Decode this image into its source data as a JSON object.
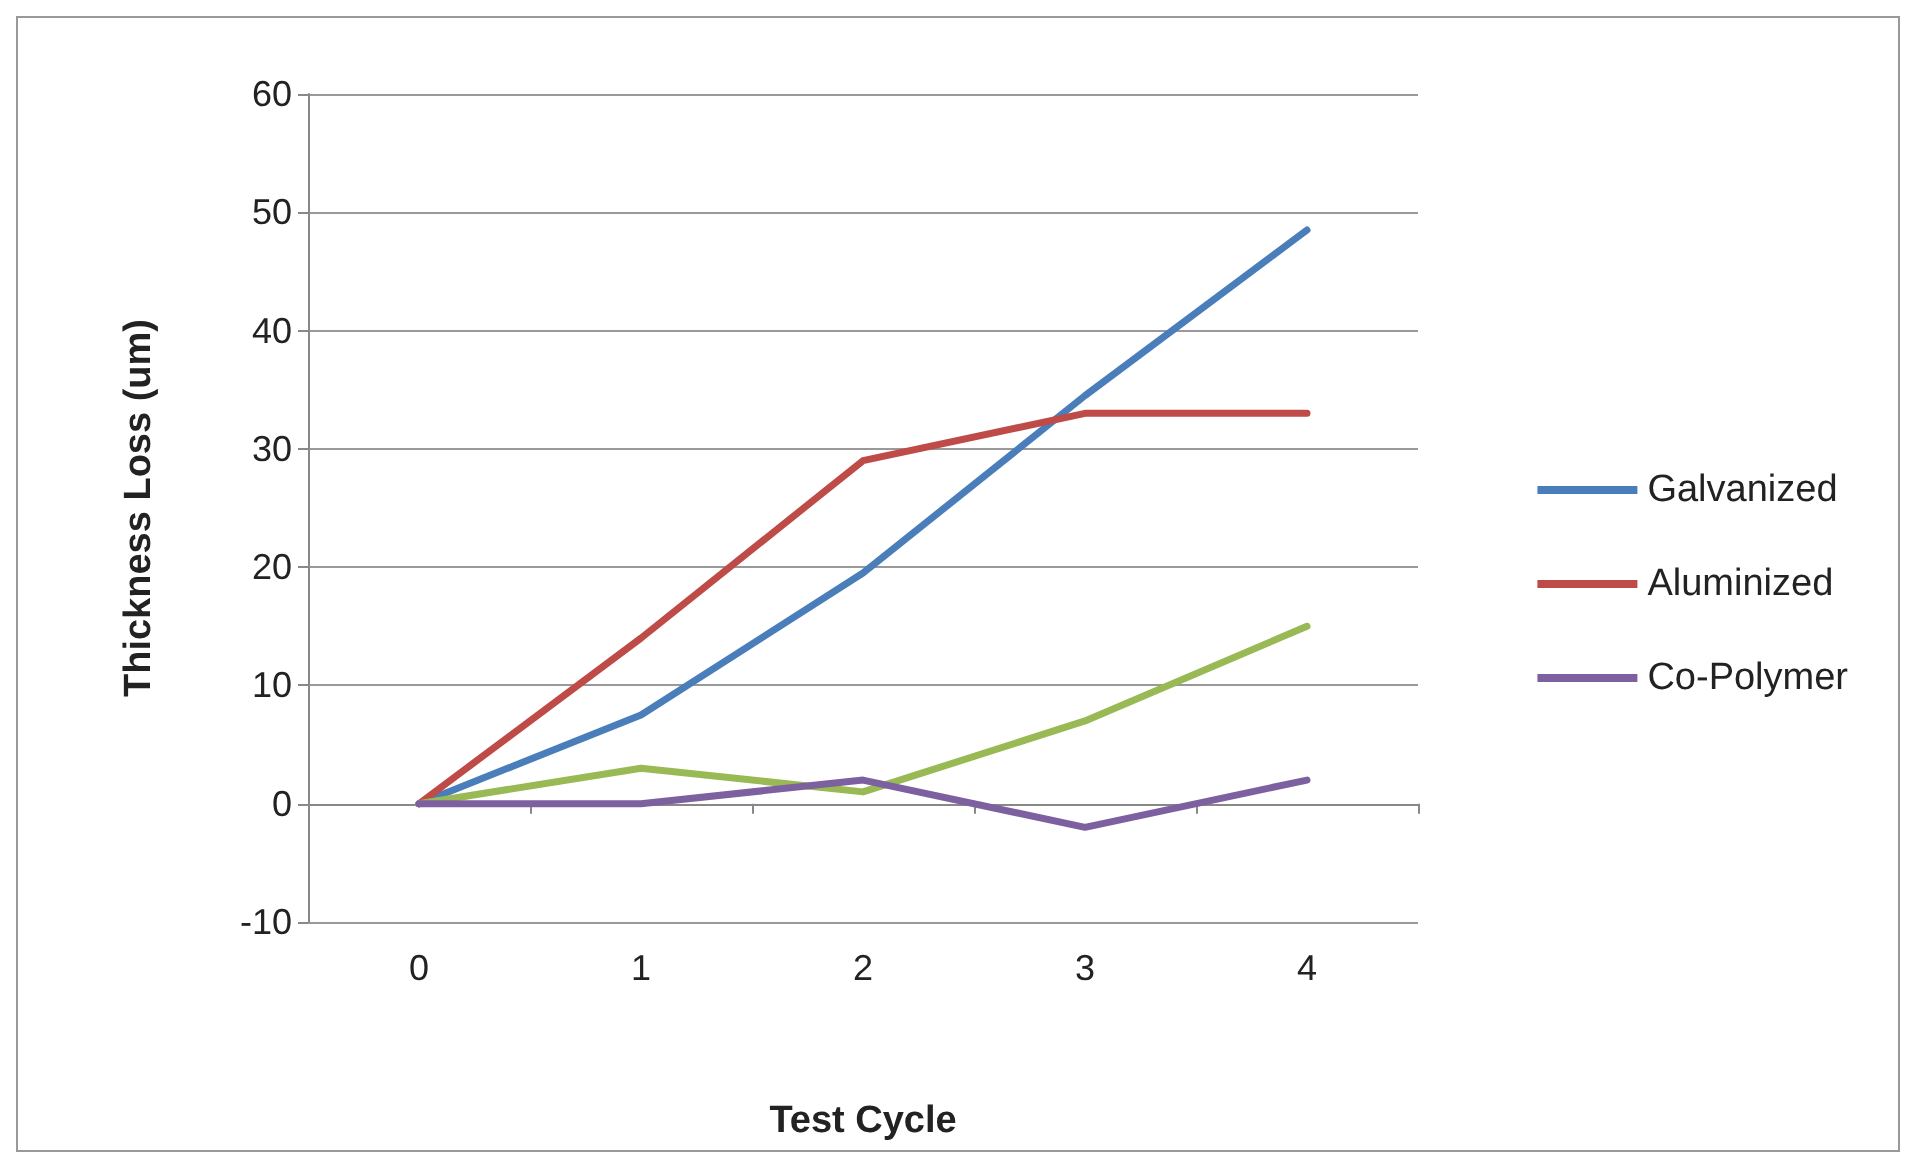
{
  "chart_data": {
    "type": "line",
    "xlabel": "Test Cycle",
    "ylabel": "Thickness Loss (um)",
    "categories": [
      "0",
      "1",
      "2",
      "3",
      "4"
    ],
    "series": [
      {
        "name": "Galvanized",
        "color": "#4a7ebb",
        "values": [
          0,
          7.5,
          19.5,
          34.5,
          48.5
        ]
      },
      {
        "name": "Aluminized",
        "color": "#be4b48",
        "values": [
          0,
          14,
          29,
          33,
          33
        ]
      },
      {
        "color": "#98b954",
        "values": [
          0,
          3,
          1,
          7,
          15
        ]
      },
      {
        "name": "Co-Polymer",
        "color": "#7d60a0",
        "values": [
          0,
          0,
          2,
          -2,
          2
        ]
      }
    ],
    "ylim": [
      -10,
      60
    ],
    "yticks": [
      -10,
      0,
      10,
      20,
      30,
      40,
      50,
      60
    ],
    "grid": "y",
    "legend": "right",
    "marker": "none",
    "line_style": "solid"
  }
}
